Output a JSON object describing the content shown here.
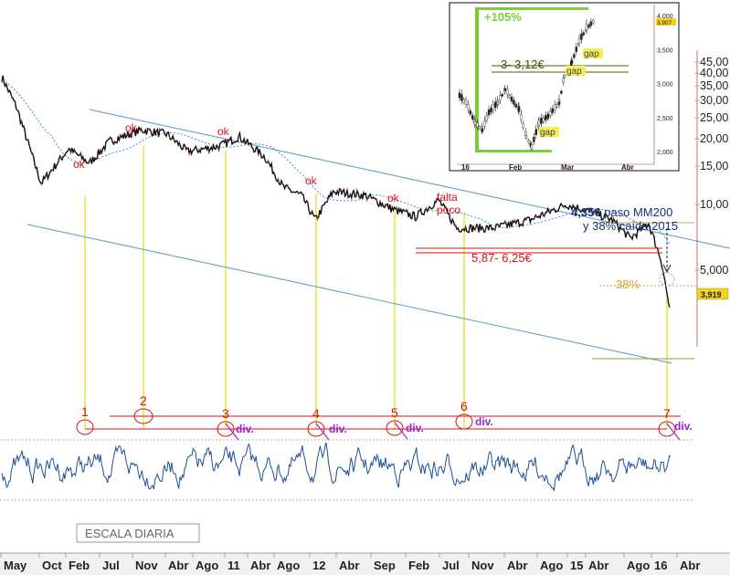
{
  "chart_data": [
    {
      "type": "line",
      "scale": "log",
      "grid": false,
      "ylim": [
        2.0,
        48.0
      ],
      "x": [
        "May",
        "Oct",
        "Feb",
        "Jul",
        "Nov",
        "Abr",
        "Ago",
        "11",
        "Abr",
        "Ago",
        "12",
        "Abr",
        "Sep",
        "Feb",
        "Jul",
        "Nov",
        "Abr",
        "Ago",
        "15",
        "Abr",
        "Ago",
        "16",
        "Abr"
      ],
      "y_ticks": [
        "45,00",
        "40,00",
        "35,00",
        "30,00",
        "25,00",
        "20,00",
        "15,00",
        "10,00",
        "5,000"
      ],
      "price_path": [
        38.5,
        28.0,
        12.5,
        18.0,
        15.5,
        19.5,
        22.0,
        21.0,
        17.5,
        18.5,
        20.5,
        16.5,
        12.0,
        11.0,
        8.5,
        11.5,
        11.0,
        9.5,
        8.8,
        10.5,
        7.8,
        7.8,
        8.5,
        10.0,
        9.2,
        8.5,
        7.0,
        8.2,
        5.5,
        3.3,
        4.0
      ],
      "last_value": "3,919",
      "annotations": [
        {
          "text": "ok"
        },
        {
          "text": "ok"
        },
        {
          "text": "ok"
        },
        {
          "text": "ok"
        },
        {
          "text": "ok"
        },
        {
          "text": "falta\npoco"
        },
        {
          "text": "5,87- 6,25€"
        },
        {
          "text": "38%"
        },
        {
          "text": "4,35€ paso MM200\ny 38% caída 2015"
        }
      ],
      "oscillator_markers": [
        "1",
        "2",
        "3",
        "4",
        "5",
        "6",
        "7"
      ],
      "divergence_labels": [
        "div.",
        "div.",
        "div.",
        "div.",
        "div."
      ],
      "footer_label": "ESCALA DIARIA"
    },
    {
      "type": "line",
      "x": [
        "16",
        "Feb",
        "Mar",
        "Abr"
      ],
      "y_ticks": [
        "4,000",
        "3,500",
        "3,000",
        "2,500",
        "2,000"
      ],
      "ylim": [
        1.85,
        4.1
      ],
      "annotations": [
        {
          "text": "+105%"
        },
        {
          "text": "3- 3,12€"
        },
        {
          "text": "gap"
        },
        {
          "text": "gap"
        },
        {
          "text": "gap"
        }
      ],
      "last_value": "3,907"
    }
  ],
  "colors": {
    "price": "#111111",
    "ma": "#3a8fd6",
    "channel": "#6fa8d0",
    "oscillator": "#1c4f98",
    "verticals": "#e8e84a",
    "annotation_red": "#e01010",
    "divergence": "#9a22c8",
    "badge": "#f2d21b",
    "green": "#7ccd3a"
  }
}
